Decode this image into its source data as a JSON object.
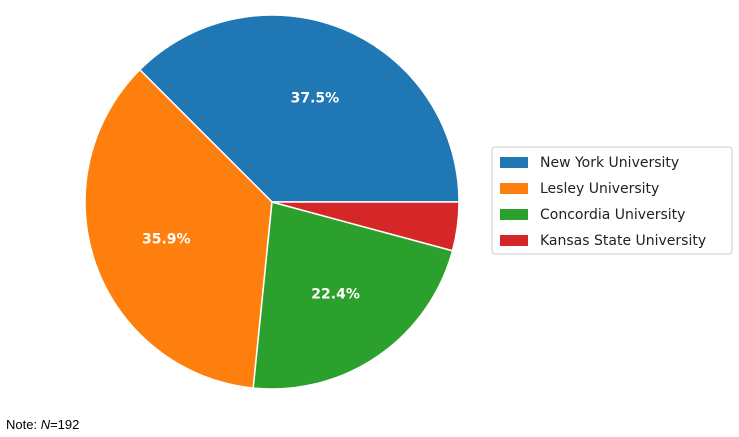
{
  "chart_data": {
    "type": "pie",
    "categories": [
      "New York University",
      "Lesley University",
      "Concordia University",
      "Kansas State University"
    ],
    "values": [
      37.5,
      35.9,
      22.4,
      4.2
    ],
    "value_labels": [
      "37.5%",
      "35.9%",
      "22.4%",
      ""
    ],
    "colors": [
      "#1f77b4",
      "#ff7f0e",
      "#2ca02c",
      "#d62728"
    ],
    "start_angle_deg": 0,
    "direction": "counterclockwise",
    "legend_position": "right"
  },
  "note": {
    "prefix": "Note: ",
    "n_symbol": "N",
    "n_value": "=192"
  }
}
